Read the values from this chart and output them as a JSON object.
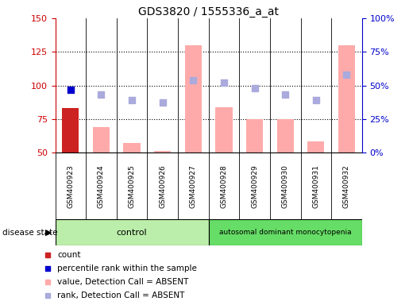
{
  "title": "GDS3820 / 1555336_a_at",
  "samples": [
    "GSM400923",
    "GSM400924",
    "GSM400925",
    "GSM400926",
    "GSM400927",
    "GSM400928",
    "GSM400929",
    "GSM400930",
    "GSM400931",
    "GSM400932"
  ],
  "bar_values": [
    83,
    69,
    57,
    51,
    130,
    84,
    75,
    75,
    58,
    130
  ],
  "bar_colors": [
    "#cc2222",
    "#ffaaaa",
    "#ffaaaa",
    "#ffaaaa",
    "#ffaaaa",
    "#ffaaaa",
    "#ffaaaa",
    "#ffaaaa",
    "#ffaaaa",
    "#ffaaaa"
  ],
  "rank_dots": [
    97,
    93,
    89,
    87,
    104,
    102,
    98,
    93,
    89,
    108
  ],
  "rank_dot_colors": [
    "#0000cc",
    "#aaaadd",
    "#aaaadd",
    "#aaaadd",
    "#aaaadd",
    "#aaaadd",
    "#aaaadd",
    "#aaaadd",
    "#aaaadd",
    "#aaaadd"
  ],
  "ylim": [
    50,
    150
  ],
  "yticks_left": [
    50,
    75,
    100,
    125,
    150
  ],
  "yticks_right_labels": [
    "0%",
    "25%",
    "50%",
    "75%",
    "100%"
  ],
  "yticks_right_vals": [
    50,
    75,
    100,
    125,
    150
  ],
  "left_axis_color": "#cc0000",
  "right_axis_color": "#0000cc",
  "dotted_lines": [
    75,
    100,
    125
  ],
  "n_control": 5,
  "n_disease": 5,
  "control_label": "control",
  "disease_label": "autosomal dominant monocytopenia",
  "disease_state_label": "disease state",
  "control_color": "#bbeeaa",
  "disease_color": "#66dd66",
  "legend_items": [
    {
      "color": "#cc2222",
      "label": "count"
    },
    {
      "color": "#0000cc",
      "label": "percentile rank within the sample"
    },
    {
      "color": "#ffaaaa",
      "label": "value, Detection Call = ABSENT"
    },
    {
      "color": "#aaaadd",
      "label": "rank, Detection Call = ABSENT"
    }
  ],
  "background_color": "#ffffff",
  "sample_label_bg": "#cccccc",
  "bar_width": 0.55
}
